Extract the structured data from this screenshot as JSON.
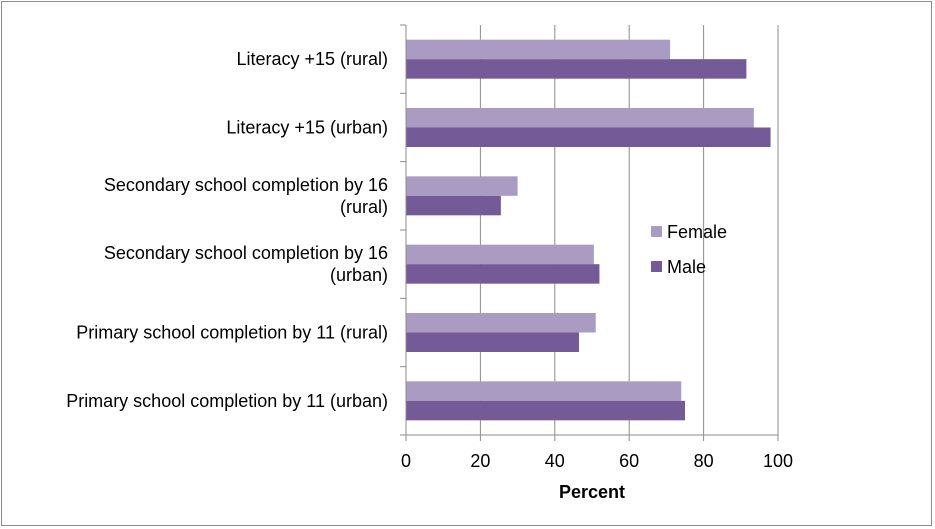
{
  "chart_data": {
    "type": "bar",
    "orientation": "horizontal",
    "categories": [
      "Literacy +15 (rural)",
      "Literacy +15 (urban)",
      "Secondary school completion by 16 (rural)",
      "Secondary school completion by 16 (urban)",
      "Primary school completion by 11 (rural)",
      "Primary school completion by 11 (urban)"
    ],
    "category_lines": [
      [
        "Literacy +15 (rural)"
      ],
      [
        "Literacy +15 (urban)"
      ],
      [
        "Secondary school completion by 16",
        "(rural)"
      ],
      [
        "Secondary school completion by 16",
        "(urban)"
      ],
      [
        "Primary school completion by 11 (rural)"
      ],
      [
        "Primary school completion by 11 (urban)"
      ]
    ],
    "series": [
      {
        "name": "Female",
        "color": "#a99bc2",
        "values": [
          71,
          93.5,
          30,
          50.5,
          51,
          74
        ]
      },
      {
        "name": "Male",
        "color": "#745a96",
        "values": [
          91.5,
          98,
          25.5,
          52,
          46.5,
          75
        ]
      }
    ],
    "xlabel": "Percent",
    "xlim": [
      0,
      100
    ],
    "xticks": [
      0,
      20,
      40,
      60,
      80,
      100
    ],
    "grid": "vertical",
    "legend": "right"
  }
}
